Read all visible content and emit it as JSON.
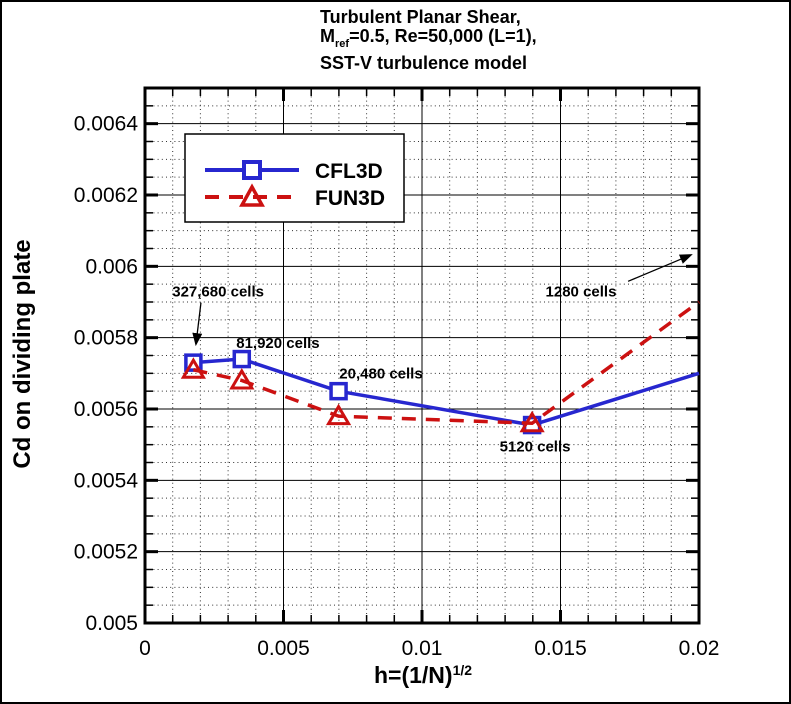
{
  "chart_data": {
    "type": "line",
    "title": {
      "line1": "Turbulent Planar Shear,",
      "line2_pre": "M",
      "line2_sub": "ref",
      "line2_post": "=0.5, Re=50,000 (L=1),",
      "line3": "SST-V turbulence model"
    },
    "xlabel_main": "h=(1/N)",
    "xlabel_sup": "1/2",
    "ylabel": "Cd on dividing plate",
    "axes": {
      "xlim": [
        0,
        0.02
      ],
      "ylim": [
        0.005,
        0.0065
      ],
      "x_major_step": 0.005,
      "x_minor_step": 0.001,
      "y_major_step": 0.0002,
      "y_minor_step": 5e-05,
      "xtick_labels": [
        {
          "v": 0,
          "label": "0"
        },
        {
          "v": 0.005,
          "label": "0.005"
        },
        {
          "v": 0.01,
          "label": "0.01"
        },
        {
          "v": 0.015,
          "label": "0.015"
        },
        {
          "v": 0.02,
          "label": "0.02"
        }
      ],
      "ytick_labels": [
        {
          "v": 0.005,
          "label": "0.005"
        },
        {
          "v": 0.0052,
          "label": "0.0052"
        },
        {
          "v": 0.0054,
          "label": "0.0054"
        },
        {
          "v": 0.0056,
          "label": "0.0056"
        },
        {
          "v": 0.0058,
          "label": "0.0058"
        },
        {
          "v": 0.006,
          "label": "0.006"
        },
        {
          "v": 0.0062,
          "label": "0.0062"
        },
        {
          "v": 0.0064,
          "label": "0.0064"
        }
      ],
      "grid": {
        "major": "solid",
        "minor": "dotted"
      }
    },
    "series": [
      {
        "name": "CFL3D",
        "color": "#2727cf",
        "line": "solid",
        "marker": "square",
        "points": [
          {
            "x": 0.001747,
            "y": 0.00573
          },
          {
            "x": 0.003494,
            "y": 0.00574
          },
          {
            "x": 0.006988,
            "y": 0.00565
          },
          {
            "x": 0.013975,
            "y": 0.005555
          }
        ],
        "edge_point": {
          "x": 0.02,
          "y": 0.0057
        }
      },
      {
        "name": "FUN3D",
        "color": "#cc1111",
        "line": "dashed",
        "marker": "triangle",
        "points": [
          {
            "x": 0.001747,
            "y": 0.00571
          },
          {
            "x": 0.003494,
            "y": 0.00568
          },
          {
            "x": 0.006988,
            "y": 0.00558
          },
          {
            "x": 0.013975,
            "y": 0.00556
          }
        ],
        "edge_point": {
          "x": 0.02,
          "y": 0.0059
        }
      }
    ],
    "annotations": [
      {
        "text": "327,680 cells",
        "x": 0.00264,
        "y": 0.00593,
        "arrow": {
          "x1": 0.00202,
          "y1": 0.005898,
          "x2": 0.00184,
          "y2": 0.005782
        }
      },
      {
        "text": "81,920 cells",
        "x": 0.0048,
        "y": 0.005785
      },
      {
        "text": "20,480 cells",
        "x": 0.00852,
        "y": 0.0057
      },
      {
        "text": "5120 cells",
        "x": 0.01408,
        "y": 0.005495
      },
      {
        "text": "1280 cells",
        "x": 0.01574,
        "y": 0.00593,
        "arrow": {
          "x1": 0.01744,
          "y1": 0.005958,
          "x2": 0.01971,
          "y2": 0.006032
        }
      }
    ],
    "legend": {
      "entries": [
        "CFL3D",
        "FUN3D"
      ],
      "position": "upper-left"
    }
  }
}
